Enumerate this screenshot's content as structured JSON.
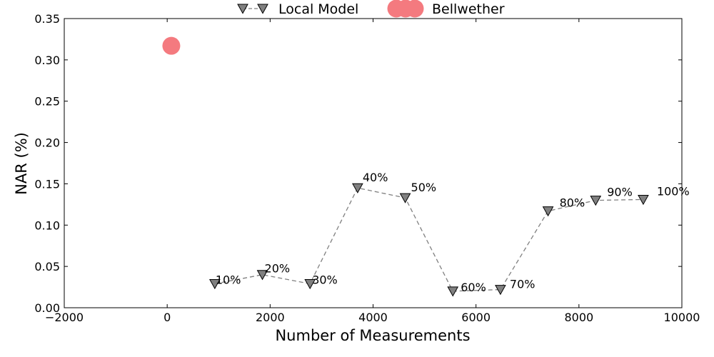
{
  "chart_data": {
    "type": "line",
    "title": "",
    "xlabel": "Number of Measurements",
    "ylabel": "NAR (%)",
    "xlim": [
      -2000,
      10000
    ],
    "ylim": [
      0,
      0.35
    ],
    "xticks": [
      -2000,
      0,
      2000,
      4000,
      6000,
      8000,
      10000
    ],
    "xtick_labels": [
      "−2000",
      "0",
      "2000",
      "4000",
      "6000",
      "8000",
      "10000"
    ],
    "yticks": [
      0.0,
      0.05,
      0.1,
      0.15,
      0.2,
      0.25,
      0.3,
      0.35
    ],
    "ytick_labels": [
      "0.00",
      "0.05",
      "0.10",
      "0.15",
      "0.20",
      "0.25",
      "0.30",
      "0.35"
    ],
    "grid": false,
    "legend_position": "top-center",
    "series": [
      {
        "name": "Local Model",
        "style": "dashed line with downward triangle markers",
        "color": "#808080",
        "x": [
          925,
          1850,
          2775,
          3700,
          4625,
          5550,
          6475,
          7400,
          8325,
          9250
        ],
        "y": [
          0.029,
          0.04,
          0.029,
          0.145,
          0.133,
          0.02,
          0.022,
          0.117,
          0.13,
          0.131
        ],
        "labels": [
          "10%",
          "20%",
          "30%",
          "40%",
          "50%",
          "60%",
          "70%",
          "80%",
          "90%",
          "100%"
        ]
      },
      {
        "name": "Bellwether",
        "style": "large circle marker",
        "color": "#f47a7f",
        "x": [
          80
        ],
        "y": [
          0.317
        ]
      }
    ]
  }
}
